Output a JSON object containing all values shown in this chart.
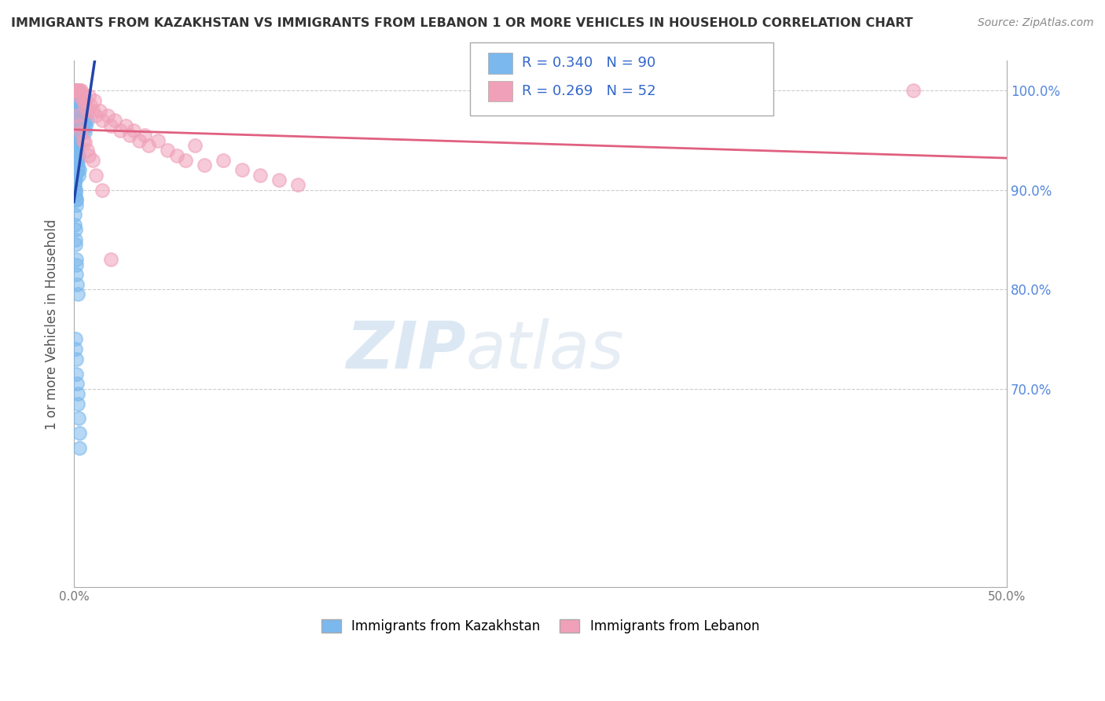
{
  "title": "IMMIGRANTS FROM KAZAKHSTAN VS IMMIGRANTS FROM LEBANON 1 OR MORE VEHICLES IN HOUSEHOLD CORRELATION CHART",
  "source": "Source: ZipAtlas.com",
  "ylabel_label": "1 or more Vehicles in Household",
  "xmin": 0.0,
  "xmax": 50.0,
  "ymin": 50.0,
  "ymax": 103.0,
  "legend_R1": "R = 0.340",
  "legend_N1": "N = 90",
  "legend_R2": "R = 0.269",
  "legend_N2": "N = 52",
  "legend_label1": "Immigrants from Kazakhstan",
  "legend_label2": "Immigrants from Lebanon",
  "color_kaz": "#7ab8ed",
  "color_leb": "#f0a0b8",
  "color_kaz_line": "#2244aa",
  "color_leb_line": "#e06080",
  "watermark_zip": "ZIP",
  "watermark_atlas": "atlas",
  "background_color": "#ffffff",
  "kaz_x": [
    0.05,
    0.08,
    0.1,
    0.1,
    0.1,
    0.12,
    0.12,
    0.15,
    0.15,
    0.18,
    0.18,
    0.2,
    0.2,
    0.2,
    0.22,
    0.22,
    0.25,
    0.25,
    0.25,
    0.28,
    0.28,
    0.3,
    0.3,
    0.3,
    0.32,
    0.35,
    0.35,
    0.38,
    0.4,
    0.4,
    0.42,
    0.45,
    0.48,
    0.5,
    0.5,
    0.55,
    0.6,
    0.6,
    0.65,
    0.7,
    0.05,
    0.08,
    0.08,
    0.1,
    0.1,
    0.12,
    0.12,
    0.12,
    0.15,
    0.15,
    0.18,
    0.18,
    0.2,
    0.2,
    0.2,
    0.22,
    0.22,
    0.25,
    0.25,
    0.28,
    0.05,
    0.05,
    0.08,
    0.08,
    0.1,
    0.1,
    0.1,
    0.12,
    0.12,
    0.15,
    0.05,
    0.05,
    0.08,
    0.1,
    0.1,
    0.12,
    0.15,
    0.15,
    0.18,
    0.2,
    0.08,
    0.1,
    0.12,
    0.15,
    0.18,
    0.2,
    0.22,
    0.25,
    0.28,
    0.3
  ],
  "kaz_y": [
    100.0,
    100.0,
    100.0,
    99.5,
    99.0,
    100.0,
    99.0,
    100.0,
    98.5,
    100.0,
    99.0,
    100.0,
    99.5,
    98.0,
    99.0,
    98.5,
    100.0,
    98.0,
    97.5,
    99.0,
    97.0,
    99.5,
    97.5,
    97.0,
    98.0,
    98.5,
    96.5,
    97.5,
    98.0,
    96.0,
    97.0,
    97.5,
    96.5,
    97.0,
    96.0,
    96.5,
    97.0,
    95.8,
    96.5,
    97.0,
    95.5,
    95.0,
    96.0,
    95.0,
    94.5,
    95.5,
    94.0,
    95.0,
    94.5,
    93.5,
    94.0,
    93.0,
    94.5,
    93.5,
    92.5,
    93.0,
    92.0,
    93.5,
    91.5,
    92.0,
    91.0,
    90.5,
    91.0,
    90.0,
    91.5,
    89.5,
    90.0,
    89.0,
    88.5,
    89.0,
    87.5,
    86.5,
    86.0,
    85.0,
    84.5,
    83.0,
    82.5,
    81.5,
    80.5,
    79.5,
    75.0,
    74.0,
    73.0,
    71.5,
    70.5,
    69.5,
    68.5,
    67.0,
    65.5,
    64.0
  ],
  "leb_x": [
    0.1,
    0.15,
    0.2,
    0.25,
    0.3,
    0.35,
    0.4,
    0.5,
    0.55,
    0.6,
    0.65,
    0.7,
    0.8,
    0.9,
    1.0,
    1.1,
    1.2,
    1.4,
    1.5,
    1.8,
    2.0,
    2.2,
    2.5,
    2.8,
    3.0,
    3.2,
    3.5,
    3.8,
    4.0,
    4.5,
    5.0,
    5.5,
    6.0,
    6.5,
    7.0,
    8.0,
    9.0,
    10.0,
    11.0,
    12.0,
    0.2,
    0.3,
    0.4,
    0.5,
    0.6,
    0.7,
    0.8,
    1.0,
    1.2,
    1.5,
    2.0,
    45.0
  ],
  "leb_y": [
    100.0,
    100.0,
    100.0,
    100.0,
    99.5,
    100.0,
    100.0,
    99.0,
    99.5,
    98.5,
    99.0,
    98.0,
    99.5,
    98.5,
    98.0,
    99.0,
    97.5,
    98.0,
    97.0,
    97.5,
    96.5,
    97.0,
    96.0,
    96.5,
    95.5,
    96.0,
    95.0,
    95.5,
    94.5,
    95.0,
    94.0,
    93.5,
    93.0,
    94.5,
    92.5,
    93.0,
    92.0,
    91.5,
    91.0,
    90.5,
    97.5,
    96.5,
    95.8,
    95.0,
    94.8,
    94.0,
    93.5,
    93.0,
    91.5,
    90.0,
    83.0,
    100.0
  ]
}
